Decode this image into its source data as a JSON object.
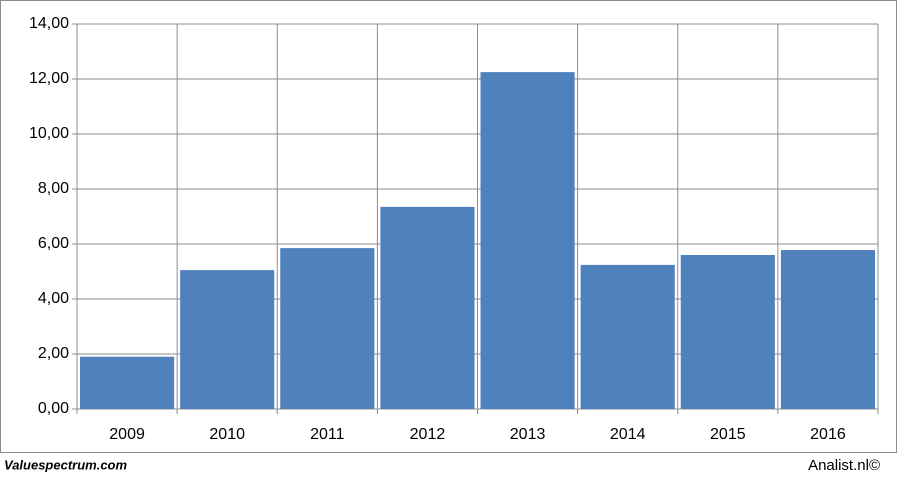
{
  "chart_data": {
    "type": "bar",
    "categories": [
      "2009",
      "2010",
      "2011",
      "2012",
      "2013",
      "2014",
      "2015",
      "2016"
    ],
    "values": [
      1.9,
      5.05,
      5.85,
      7.35,
      12.25,
      5.24,
      5.6,
      5.78
    ],
    "color": "#4f81bd",
    "ylim": [
      0,
      14
    ],
    "yticks": [
      {
        "value": 0,
        "label": "0,00"
      },
      {
        "value": 2,
        "label": "2,00"
      },
      {
        "value": 4,
        "label": "4,00"
      },
      {
        "value": 6,
        "label": "6,00"
      },
      {
        "value": 8,
        "label": "8,00"
      },
      {
        "value": 10,
        "label": "10,00"
      },
      {
        "value": 12,
        "label": "12,00"
      },
      {
        "value": 14,
        "label": "14,00"
      }
    ],
    "grid": true,
    "source": "Valuespectrum.com",
    "credit": "Analist.nl©"
  }
}
